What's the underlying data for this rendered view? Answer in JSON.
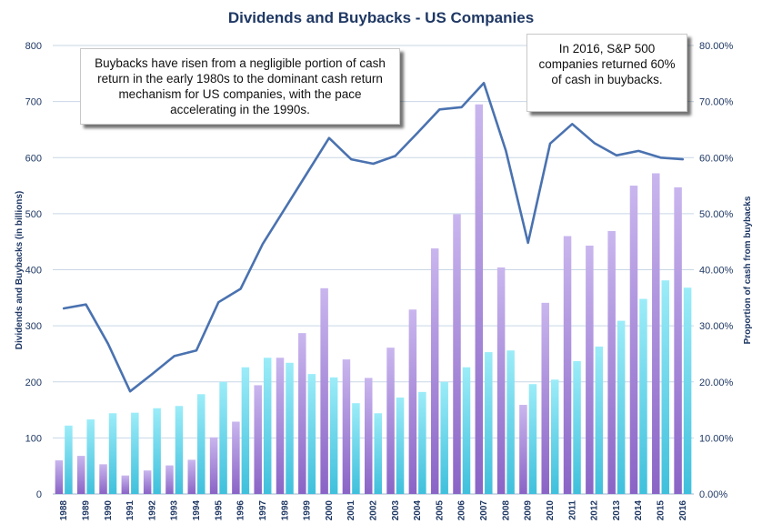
{
  "chart_data": {
    "type": "bar",
    "title": "Dividends and Buybacks - US Companies",
    "ylabel": "Dividends and Buybacks (in billions)",
    "y2label": "Proportion of cash from buybacks",
    "ylim": [
      0,
      800
    ],
    "y2lim": [
      0,
      0.8
    ],
    "yticks": [
      "0",
      "100",
      "200",
      "300",
      "400",
      "500",
      "600",
      "700",
      "800"
    ],
    "y2ticks": [
      "0.00%",
      "10.00%",
      "20.00%",
      "30.00%",
      "40.00%",
      "50.00%",
      "60.00%",
      "70.00%",
      "80.00%"
    ],
    "grid": true,
    "categories": [
      "1988",
      "1989",
      "1990",
      "1991",
      "1992",
      "1993",
      "1994",
      "1995",
      "1996",
      "1997",
      "1998",
      "1999",
      "2000",
      "2001",
      "2002",
      "2003",
      "2004",
      "2005",
      "2006",
      "2007",
      "2008",
      "2009",
      "2010",
      "2011",
      "2012",
      "2013",
      "2014",
      "2015",
      "2016"
    ],
    "series": [
      {
        "type": "bar",
        "axis": "left",
        "color": "#a98bd6",
        "values": [
          60,
          68,
          53,
          33,
          42,
          51,
          61,
          101,
          129,
          194,
          243,
          287,
          367,
          240,
          207,
          261,
          329,
          438,
          499,
          695,
          404,
          159,
          341,
          460,
          443,
          469,
          550,
          572,
          547
        ]
      },
      {
        "type": "bar",
        "axis": "left",
        "color": "#6fd6ea",
        "values": [
          122,
          133,
          144,
          145,
          153,
          157,
          178,
          200,
          226,
          243,
          234,
          214,
          208,
          162,
          144,
          172,
          182,
          200,
          226,
          253,
          256,
          196,
          204,
          237,
          263,
          309,
          348,
          381,
          368
        ]
      },
      {
        "type": "line",
        "axis": "right",
        "color": "#4a72b0",
        "values": [
          0.331,
          0.338,
          0.268,
          0.183,
          0.214,
          0.246,
          0.256,
          0.342,
          0.366,
          0.446,
          0.509,
          0.572,
          0.635,
          0.597,
          0.589,
          0.603,
          0.644,
          0.686,
          0.69,
          0.733,
          0.612,
          0.448,
          0.625,
          0.66,
          0.626,
          0.604,
          0.612,
          0.6,
          0.597
        ]
      }
    ],
    "annotations": [
      "Buybacks have risen from a negligible portion of cash return in the early 1980s to the dominant cash return mechanism for US companies, with the pace accelerating in the 1990s.",
      "In 2016, S&P 500 companies returned 60% of cash in buybacks."
    ]
  }
}
